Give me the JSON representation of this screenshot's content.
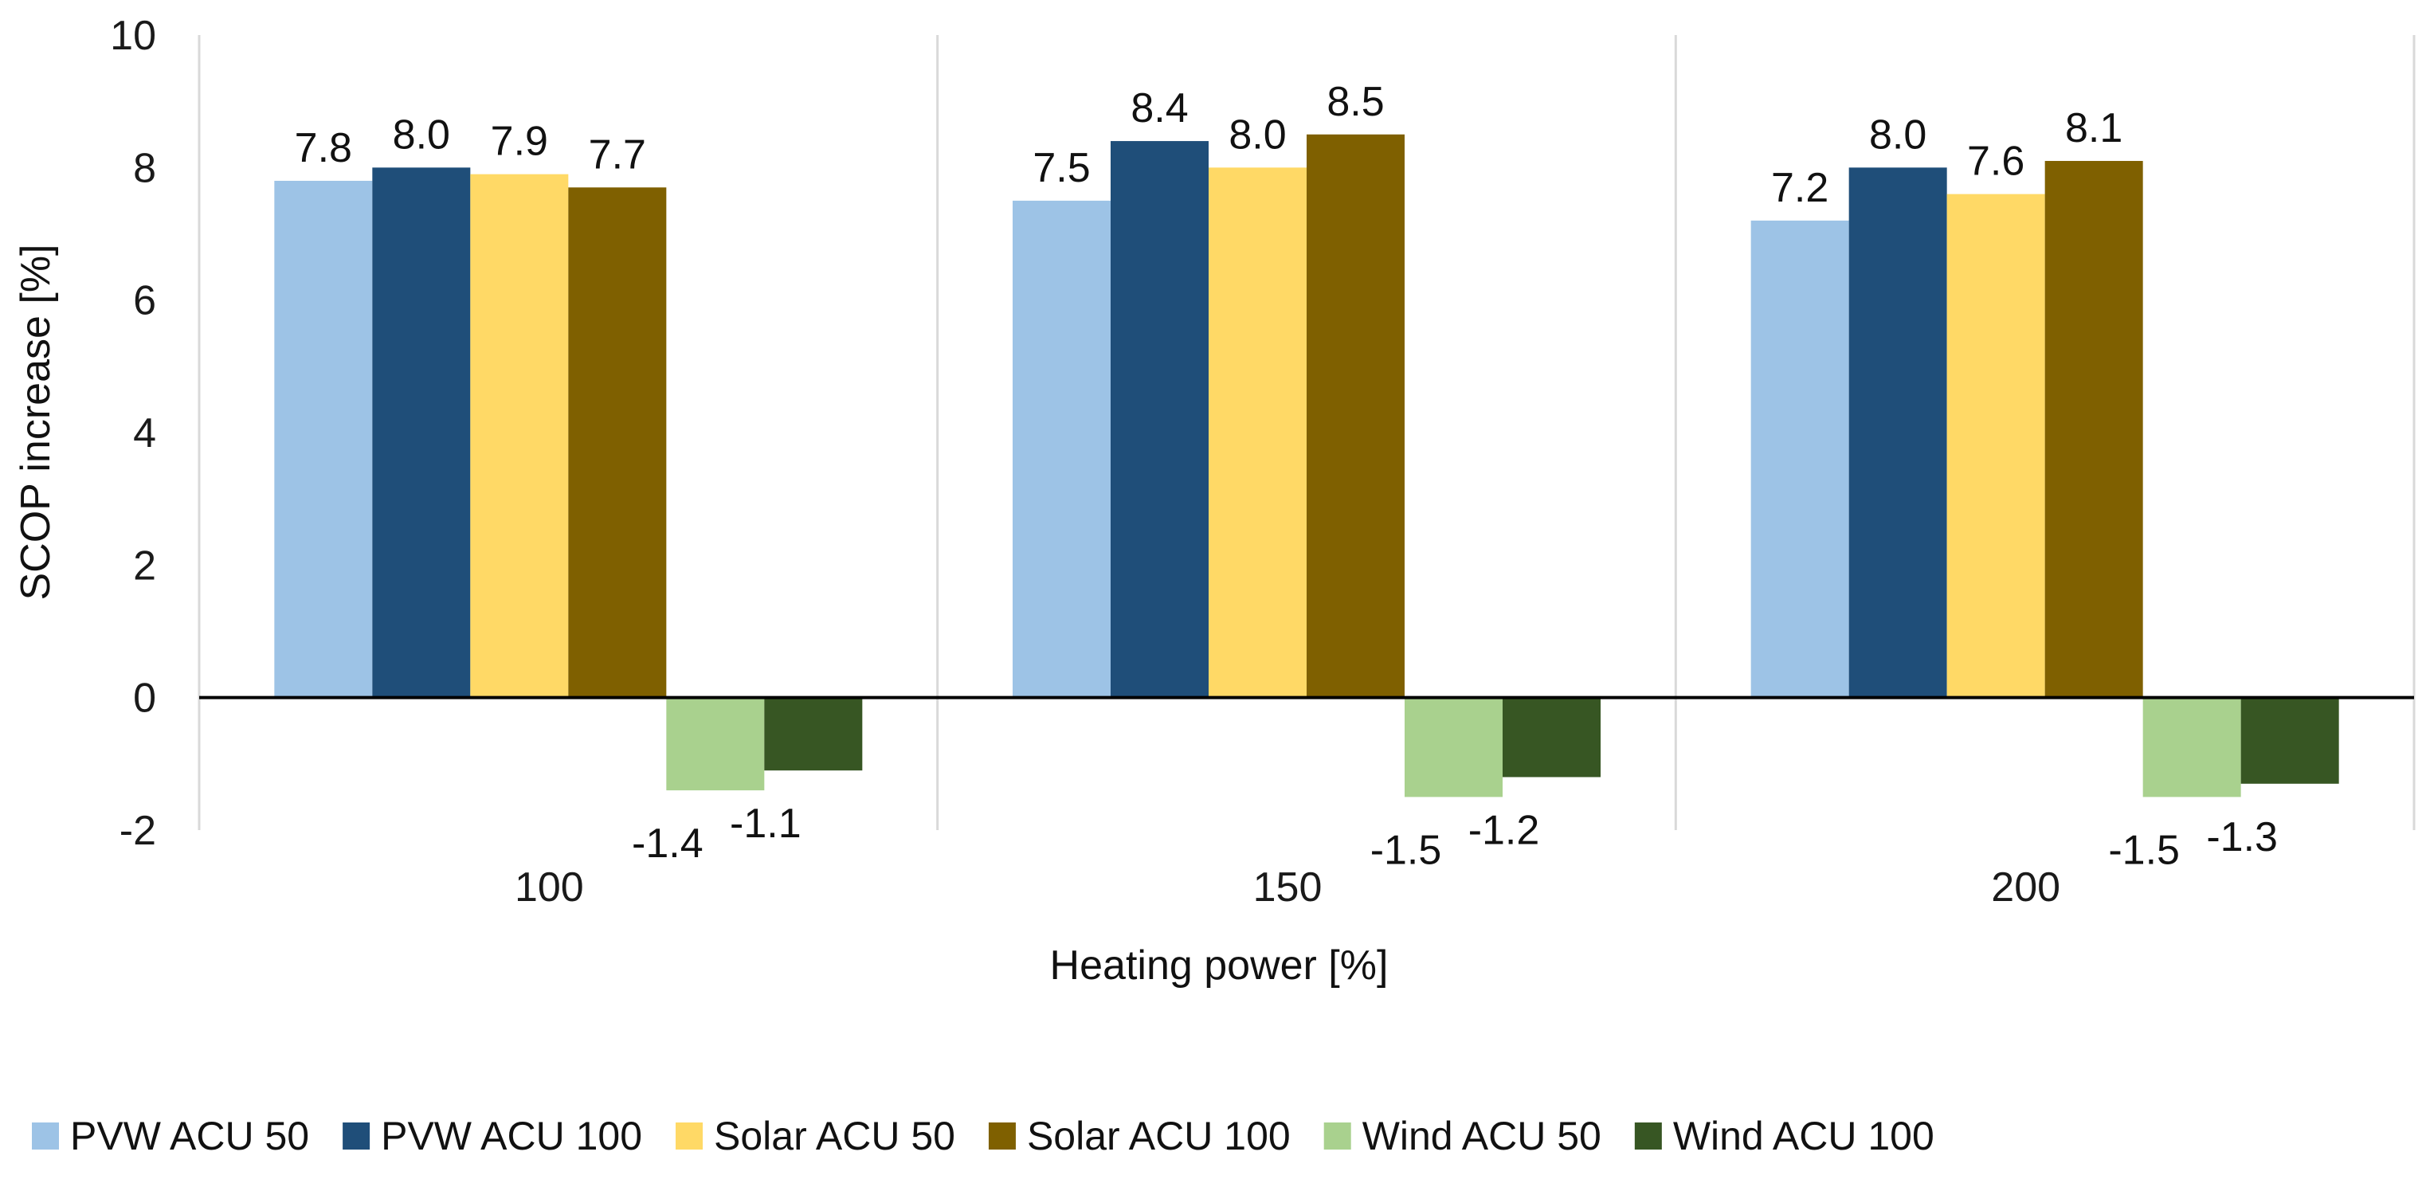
{
  "chart_data": {
    "type": "bar",
    "title": "",
    "xlabel": "Heating power [%]",
    "ylabel": "SCOP increase [%]",
    "ylim": [
      -2,
      10
    ],
    "yticks": [
      -2,
      0,
      2,
      4,
      6,
      8,
      10
    ],
    "categories": [
      "100",
      "150",
      "200"
    ],
    "legend_position": "bottom",
    "series": [
      {
        "name": "PVW ACU 50",
        "color": "#9DC3E6",
        "values": [
          7.8,
          7.5,
          7.2
        ],
        "labels": [
          "7.8",
          "7.5",
          "7.2"
        ]
      },
      {
        "name": "PVW ACU 100",
        "color": "#1F4E79",
        "values": [
          8.0,
          8.4,
          8.0
        ],
        "labels": [
          "8.0",
          "8.4",
          "8.0"
        ]
      },
      {
        "name": "Solar ACU 50",
        "color": "#FFD966",
        "values": [
          7.9,
          8.0,
          7.6
        ],
        "labels": [
          "7.9",
          "8.0",
          "7.6"
        ]
      },
      {
        "name": "Solar ACU 100",
        "color": "#7F6000",
        "values": [
          7.7,
          8.5,
          8.1
        ],
        "labels": [
          "7.7",
          "8.5",
          "8.1"
        ]
      },
      {
        "name": "Wind ACU 50",
        "color": "#A9D18E",
        "values": [
          -1.4,
          -1.5,
          -1.5
        ],
        "labels": [
          "-1.4",
          "-1.5",
          "-1.5"
        ]
      },
      {
        "name": "Wind ACU 100",
        "color": "#375623",
        "values": [
          -1.1,
          -1.2,
          -1.3
        ],
        "labels": [
          "-1.1",
          "-1.2",
          "-1.3"
        ]
      }
    ]
  }
}
